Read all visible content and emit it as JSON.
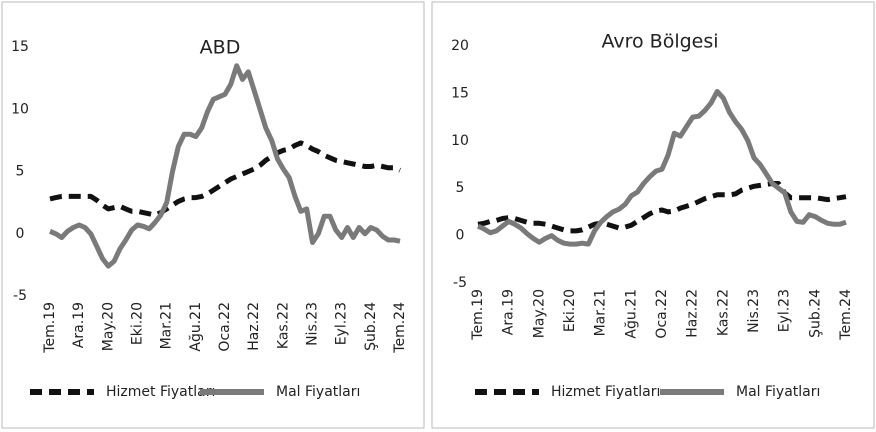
{
  "chart_data": [
    {
      "type": "line",
      "title": "ABD",
      "categories": [
        "Tem.19",
        null,
        null,
        null,
        null,
        "Ara.19",
        null,
        null,
        null,
        null,
        "May.20",
        null,
        null,
        null,
        null,
        "Eki.20",
        null,
        null,
        null,
        null,
        "Mar.21",
        null,
        null,
        null,
        null,
        "Ağu.21",
        null,
        null,
        null,
        null,
        "Oca.22",
        null,
        null,
        null,
        null,
        "Haz.22",
        null,
        null,
        null,
        null,
        "Kas.22",
        null,
        null,
        null,
        null,
        "Nis.23",
        null,
        null,
        null,
        null,
        "Eyl.23",
        null,
        null,
        null,
        null,
        "Şub.24",
        null,
        null,
        null,
        null,
        "Tem.24"
      ],
      "series": [
        {
          "name": "Hizmet Fiyatları",
          "color": "#111111",
          "dashed": true,
          "values": [
            2.8,
            2.9,
            3.0,
            3.0,
            3.0,
            3.0,
            3.0,
            3.0,
            2.7,
            2.3,
            2.0,
            2.1,
            2.2,
            2.0,
            1.8,
            1.8,
            1.7,
            1.6,
            1.5,
            1.7,
            2.0,
            2.3,
            2.6,
            2.8,
            2.9,
            2.9,
            3.0,
            3.2,
            3.5,
            3.8,
            4.1,
            4.4,
            4.6,
            4.8,
            5.0,
            5.2,
            5.5,
            5.9,
            6.2,
            6.5,
            6.7,
            6.8,
            7.1,
            7.3,
            7.1,
            6.8,
            6.6,
            6.3,
            6.1,
            5.9,
            5.8,
            5.7,
            5.6,
            5.5,
            5.4,
            5.4,
            5.5,
            5.4,
            5.3,
            5.3,
            5.1
          ]
        },
        {
          "name": "Mal Fiyatları",
          "color": "#7a7a7a",
          "dashed": false,
          "values": [
            0.2,
            0.0,
            -0.3,
            0.2,
            0.5,
            0.7,
            0.5,
            0.0,
            -1.0,
            -2.0,
            -2.6,
            -2.2,
            -1.2,
            -0.5,
            0.3,
            0.7,
            0.6,
            0.4,
            0.9,
            1.5,
            2.5,
            5.0,
            7.0,
            8.0,
            8.0,
            7.8,
            8.5,
            9.8,
            10.8,
            11.0,
            11.2,
            12.0,
            13.5,
            12.4,
            13.0,
            11.5,
            10.0,
            8.5,
            7.5,
            6.0,
            5.2,
            4.5,
            3.0,
            1.8,
            2.0,
            -0.7,
            0.0,
            1.4,
            1.4,
            0.3,
            -0.3,
            0.5,
            -0.3,
            0.5,
            0.0,
            0.5,
            0.3,
            -0.2,
            -0.5,
            -0.5,
            -0.6
          ]
        }
      ],
      "ylim": [
        -5,
        15
      ],
      "yticks": [
        -5,
        0,
        5,
        10,
        15
      ],
      "grid": false,
      "legend": "bottom"
    },
    {
      "type": "line",
      "title": "Avro Bölgesi",
      "categories": [
        "Tem.19",
        null,
        null,
        null,
        null,
        "Ara.19",
        null,
        null,
        null,
        null,
        "May.20",
        null,
        null,
        null,
        null,
        "Eki.20",
        null,
        null,
        null,
        null,
        "Mar.21",
        null,
        null,
        null,
        null,
        "Ağu.21",
        null,
        null,
        null,
        null,
        "Oca.22",
        null,
        null,
        null,
        null,
        "Haz.22",
        null,
        null,
        null,
        null,
        "Kas.22",
        null,
        null,
        null,
        null,
        "Nis.23",
        null,
        null,
        null,
        null,
        "Eyl.23",
        null,
        null,
        null,
        null,
        "Şub.24",
        null,
        null,
        null,
        null,
        "Tem.24"
      ],
      "series": [
        {
          "name": "Hizmet Fiyatları",
          "color": "#111111",
          "dashed": true,
          "values": [
            1.2,
            1.3,
            1.5,
            1.6,
            1.8,
            1.9,
            1.8,
            1.6,
            1.4,
            1.3,
            1.3,
            1.2,
            1.0,
            0.8,
            0.6,
            0.5,
            0.5,
            0.6,
            0.9,
            1.2,
            1.3,
            1.2,
            1.0,
            0.8,
            0.9,
            1.1,
            1.5,
            1.9,
            2.3,
            2.6,
            2.7,
            2.5,
            2.6,
            2.9,
            3.1,
            3.3,
            3.6,
            3.9,
            4.1,
            4.3,
            4.3,
            4.3,
            4.4,
            4.8,
            5.0,
            5.2,
            5.3,
            5.4,
            5.5,
            5.5,
            4.5,
            4.0,
            4.0,
            4.0,
            4.0,
            4.0,
            3.9,
            3.8,
            3.9,
            4.0,
            4.1
          ]
        },
        {
          "name": "Mal Fiyatları",
          "color": "#7a7a7a",
          "dashed": false,
          "values": [
            1.0,
            0.7,
            0.3,
            0.5,
            1.0,
            1.5,
            1.2,
            0.8,
            0.2,
            -0.3,
            -0.7,
            -0.3,
            0.0,
            -0.5,
            -0.8,
            -0.9,
            -0.9,
            -0.8,
            -0.9,
            0.5,
            1.4,
            2.0,
            2.5,
            2.8,
            3.3,
            4.2,
            4.6,
            5.5,
            6.2,
            6.8,
            7.0,
            8.5,
            10.8,
            10.5,
            11.5,
            12.5,
            12.6,
            13.2,
            14.0,
            15.2,
            14.5,
            13.0,
            12.0,
            11.2,
            10.0,
            8.2,
            7.5,
            6.5,
            5.5,
            5.0,
            4.5,
            2.5,
            1.5,
            1.4,
            2.2,
            2.0,
            1.6,
            1.3,
            1.2,
            1.2,
            1.4
          ]
        }
      ],
      "ylim": [
        -5,
        20
      ],
      "yticks": [
        -5,
        0,
        5,
        10,
        15,
        20
      ],
      "grid": false,
      "legend": "bottom"
    }
  ]
}
